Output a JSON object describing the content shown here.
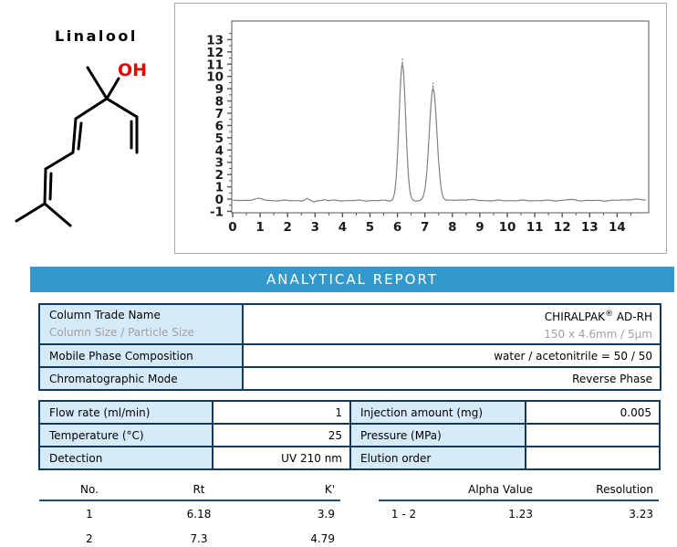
{
  "molecule": {
    "title": "Linalool",
    "oh_label": "OH",
    "oh_color": "#ee0000"
  },
  "banner": {
    "title": "ANALYTICAL REPORT",
    "bg_color": "#3399cc",
    "text_color": "#ffffff"
  },
  "info_table": {
    "rows": [
      {
        "label": "Column Trade Name",
        "sublabel": "Column Size / Particle Size",
        "value_main": "CHIRALPAK",
        "value_sup": "®",
        "value_tail": " AD-RH",
        "subvalue": "150 x 4.6mm / 5μm"
      },
      {
        "label": "Mobile Phase Composition",
        "value": "water / acetonitrile = 50 / 50"
      },
      {
        "label": "Chromatographic Mode",
        "value": "Reverse Phase"
      }
    ]
  },
  "conditions_table": {
    "rows": [
      {
        "label1": "Flow rate (ml/min)",
        "value1": "1",
        "label2": "Injection amount (mg)",
        "value2": "0.005"
      },
      {
        "label1": "Temperature (°C)",
        "value1": "25",
        "label2": "Pressure (MPa)",
        "value2": ""
      },
      {
        "label1": "Detection",
        "value1": "UV 210 nm",
        "label2": "Elution order",
        "value2": ""
      }
    ]
  },
  "results_left": {
    "headers": [
      "No.",
      "Rt",
      "K'"
    ],
    "aligns": [
      "ctr",
      "ctr",
      "rgt"
    ],
    "rows": [
      [
        "1",
        "6.18",
        "3.9"
      ],
      [
        "2",
        "7.3",
        "4.79"
      ]
    ]
  },
  "results_right": {
    "headers": [
      "",
      "Alpha Value",
      "Resolution"
    ],
    "aligns": [
      "ctr",
      "rgt",
      "rgt"
    ],
    "rows": [
      [
        "1 - 2",
        "1.23",
        "3.23"
      ]
    ]
  },
  "chart_data": {
    "type": "line",
    "title": "",
    "xlabel": "",
    "ylabel": "",
    "xlim": [
      0,
      15.05
    ],
    "ylim": [
      -1.15,
      14.5
    ],
    "x_ticks": [
      0,
      1,
      2,
      3,
      4,
      5,
      6,
      7,
      8,
      9,
      10,
      11,
      12,
      13,
      14
    ],
    "y_ticks": [
      -1,
      0,
      1,
      2,
      3,
      4,
      5,
      6,
      7,
      8,
      9,
      10,
      11,
      12,
      13
    ],
    "grid": false,
    "legend": false,
    "baseline": -0.12,
    "peaks": [
      {
        "no": 1,
        "rt": 6.18,
        "height": 11.0,
        "sigma": 0.12,
        "marker": [
          11.05,
          11.45
        ]
      },
      {
        "no": 2,
        "rt": 7.3,
        "height": 9.0,
        "sigma": 0.14,
        "marker": [
          9.1,
          9.5
        ]
      }
    ],
    "noise_bumps": [
      {
        "x": 0.9,
        "h": 0.15,
        "s": 0.18
      },
      {
        "x": 2.7,
        "h": 0.14,
        "s": 0.05
      },
      {
        "x": 2.95,
        "h": -0.1,
        "s": 0.05
      },
      {
        "x": 3.35,
        "h": 0.08,
        "s": 0.06
      },
      {
        "x": 8.5,
        "h": 0.07,
        "s": 0.25
      },
      {
        "x": 12.3,
        "h": 0.06,
        "s": 0.2
      },
      {
        "x": 14.6,
        "h": 0.1,
        "s": 0.3
      }
    ],
    "line_color": "#808080",
    "axis_color": "#555555",
    "tick_label_color": "#1a1a1a",
    "marker_color": "#444444"
  }
}
